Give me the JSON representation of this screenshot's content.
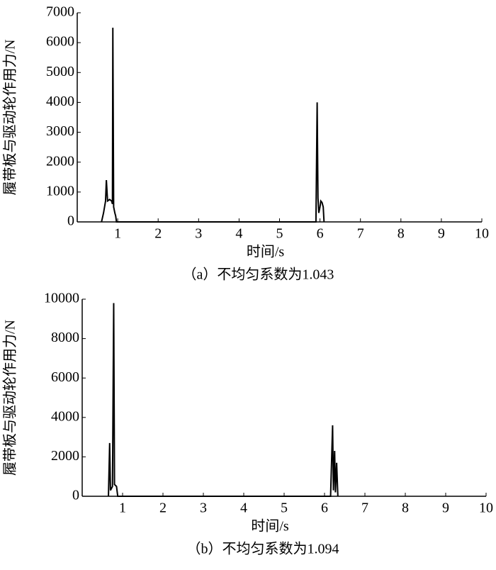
{
  "chart_data": [
    {
      "type": "line",
      "ylabel": "履带板与驱动轮作用力/N",
      "xlabel": "时间/s",
      "caption": "（a）不均匀系数为1.043",
      "x": [
        0.6,
        0.65,
        0.7,
        0.72,
        0.75,
        0.8,
        0.85,
        0.87,
        0.88,
        0.9,
        0.93,
        0.95,
        0.97,
        5.9,
        5.93,
        5.95,
        5.97,
        6.0,
        6.02,
        6.05,
        6.08,
        6.1
      ],
      "series": [
        {
          "color": "#000000",
          "values": [
            0,
            300,
            700,
            1400,
            700,
            750,
            700,
            600,
            6500,
            500,
            300,
            200,
            0,
            0,
            4000,
            800,
            300,
            500,
            700,
            650,
            500,
            0
          ]
        }
      ],
      "xlim": [
        0,
        10
      ],
      "xticks": [
        1,
        2,
        3,
        4,
        5,
        6,
        7,
        8,
        9,
        10
      ],
      "ylim": [
        0,
        7000
      ],
      "yticks": [
        0,
        1000,
        2000,
        3000,
        4000,
        5000,
        6000,
        7000
      ]
    },
    {
      "type": "line",
      "ylabel": "履带板与驱动轮作用力/N",
      "xlabel": "时间/s",
      "caption": "（b）不均匀系数为1.094",
      "x": [
        0.65,
        0.68,
        0.7,
        0.75,
        0.78,
        0.8,
        0.85,
        0.88,
        6.15,
        6.2,
        6.22,
        6.25,
        6.27,
        6.3,
        6.33
      ],
      "series": [
        {
          "color": "#000000",
          "values": [
            0,
            2700,
            300,
            500,
            9800,
            600,
            500,
            0,
            0,
            3600,
            300,
            2300,
            200,
            1700,
            0
          ]
        }
      ],
      "xlim": [
        0,
        10
      ],
      "xticks": [
        1,
        2,
        3,
        4,
        5,
        6,
        7,
        8,
        9,
        10
      ],
      "ylim": [
        0,
        10000
      ],
      "yticks": [
        0,
        2000,
        4000,
        6000,
        8000,
        10000
      ]
    }
  ]
}
